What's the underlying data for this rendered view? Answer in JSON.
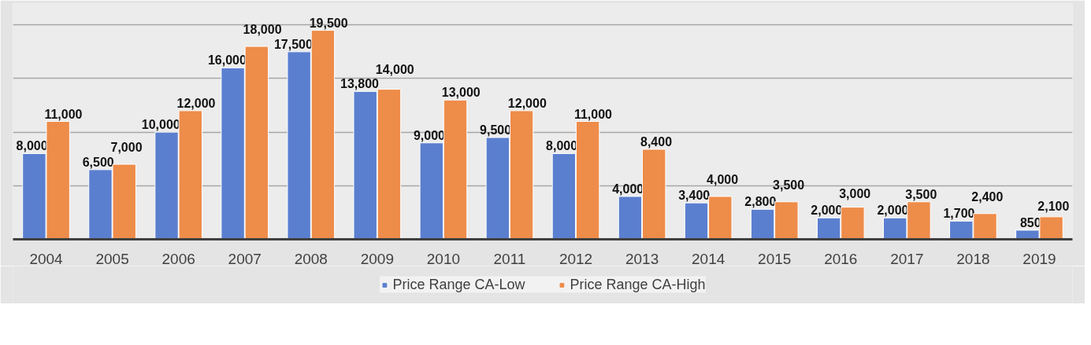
{
  "chart_data": {
    "type": "bar",
    "categories": [
      "2004",
      "2005",
      "2006",
      "2007",
      "2008",
      "2009",
      "2010",
      "2011",
      "2012",
      "2013",
      "2014",
      "2015",
      "2016",
      "2017",
      "2018",
      "2019"
    ],
    "series": [
      {
        "name": "Price Range CA-Low",
        "color": "#5b7fcf",
        "values": [
          8000,
          6500,
          10000,
          16000,
          17500,
          13800,
          9000,
          9500,
          8000,
          4000,
          3400,
          2800,
          2000,
          2000,
          1700,
          850
        ],
        "value_labels": [
          "8,000",
          "6,500",
          "10,000",
          "16,000",
          "17,500",
          "13,800",
          "9,000",
          "9,500",
          "8,000",
          "4,000",
          "3,400",
          "2,800",
          "2,000",
          "2,000",
          "1,700",
          "850"
        ]
      },
      {
        "name": "Price Range CA-High",
        "color": "#ee8c4a",
        "values": [
          11000,
          7000,
          12000,
          18000,
          19500,
          14000,
          13000,
          12000,
          11000,
          8400,
          4000,
          3500,
          3000,
          3500,
          2400,
          2100
        ],
        "value_labels": [
          "11,000",
          "7,000",
          "12,000",
          "18,000",
          "19,500",
          "14,000",
          "13,000",
          "12,000",
          "11,000",
          "8,400",
          "4,000",
          "3,500",
          "3,000",
          "3,500",
          "2,400",
          "2,100"
        ]
      }
    ],
    "ylim": [
      0,
      22000
    ],
    "yticks": [
      0,
      5000,
      10000,
      15000,
      20000
    ],
    "tick_labels": "x",
    "grid": "y",
    "legend": "bottom"
  }
}
